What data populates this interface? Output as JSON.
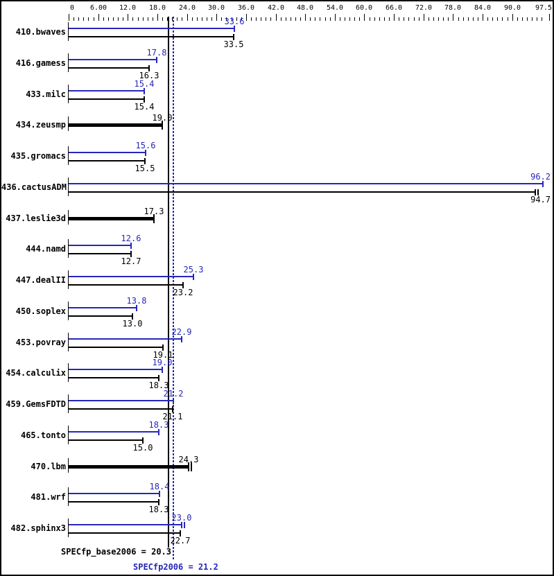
{
  "page": {
    "background": "#ffffff",
    "border_color": "#000000"
  },
  "chart_data": {
    "type": "bar",
    "orientation": "horizontal",
    "title": "",
    "colors": {
      "peak": "#2626bb",
      "base": "#000000"
    },
    "axis": {
      "min": 0,
      "max": 97.5,
      "position": "top",
      "major_tick_values": [
        0,
        6,
        12,
        18,
        24,
        30,
        36,
        42,
        48,
        54,
        60,
        66,
        72,
        78,
        84,
        90,
        97.5
      ],
      "major_tick_labels": [
        "0",
        "6.00",
        "12.0",
        "18.0",
        "24.0",
        "30.0",
        "36.0",
        "42.0",
        "48.0",
        "54.0",
        "60.0",
        "66.0",
        "72.0",
        "78.0",
        "84.0",
        "90.0",
        "97.5"
      ],
      "minor_tick_interval": 1
    },
    "series": [
      {
        "name": "peak",
        "color": "#2626bb"
      },
      {
        "name": "base",
        "color": "#000000"
      }
    ],
    "benchmarks": [
      {
        "label": "410.bwaves",
        "peak": 33.6,
        "peak_label": "33.6",
        "base": 33.5,
        "base_label": "33.5"
      },
      {
        "label": "416.gamess",
        "peak": 17.8,
        "peak_label": "17.8",
        "base": 16.3,
        "base_label": "16.3"
      },
      {
        "label": "433.milc",
        "peak": 15.4,
        "peak_label": "15.4",
        "base": 15.4,
        "base_label": "15.4"
      },
      {
        "label": "434.zeusmp",
        "single": true,
        "value": 19.0,
        "value_label": "19.0"
      },
      {
        "label": "435.gromacs",
        "peak": 15.6,
        "peak_label": "15.6",
        "base": 15.5,
        "base_label": "15.5"
      },
      {
        "label": "436.cactusADM",
        "peak": 96.2,
        "peak_label": "96.2",
        "base": 94.7,
        "base_label": "94.7",
        "base_double_tick": true
      },
      {
        "label": "437.leslie3d",
        "single": true,
        "value": 17.3,
        "value_label": "17.3"
      },
      {
        "label": "444.namd",
        "peak": 12.6,
        "peak_label": "12.6",
        "base": 12.7,
        "base_label": "12.7"
      },
      {
        "label": "447.dealII",
        "peak": 25.3,
        "peak_label": "25.3",
        "base": 23.2,
        "base_label": "23.2"
      },
      {
        "label": "450.soplex",
        "peak": 13.8,
        "peak_label": "13.8",
        "base": 13.0,
        "base_label": "13.0"
      },
      {
        "label": "453.povray",
        "peak": 22.9,
        "peak_label": "22.9",
        "base": 19.1,
        "base_label": "19.1"
      },
      {
        "label": "454.calculix",
        "peak": 19.0,
        "peak_label": "19.0",
        "base": 18.3,
        "base_label": "18.3"
      },
      {
        "label": "459.GemsFDTD",
        "peak": 21.2,
        "peak_label": "21.2",
        "base": 21.1,
        "base_label": "21.1"
      },
      {
        "label": "465.tonto",
        "peak": 18.3,
        "peak_label": "18.3",
        "base": 15.0,
        "base_label": "15.0"
      },
      {
        "label": "470.lbm",
        "single": true,
        "value": 24.3,
        "value_label": "24.3",
        "double_tick": true
      },
      {
        "label": "481.wrf",
        "peak": 18.4,
        "peak_label": "18.4",
        "base": 18.3,
        "base_label": "18.3"
      },
      {
        "label": "482.sphinx3",
        "peak": 23.0,
        "peak_label": "23.0",
        "base": 22.7,
        "base_label": "22.7",
        "peak_double_tick": true
      }
    ],
    "reference_lines": [
      {
        "name": "base_mean",
        "value": 20.3,
        "style": "solid",
        "color": "#000000",
        "label": "SPECfp_base2006 = 20.3"
      },
      {
        "name": "peak_mean",
        "value": 21.2,
        "style": "dotted",
        "color": "#2626bb",
        "label": "SPECfp2006 = 21.2"
      }
    ]
  }
}
